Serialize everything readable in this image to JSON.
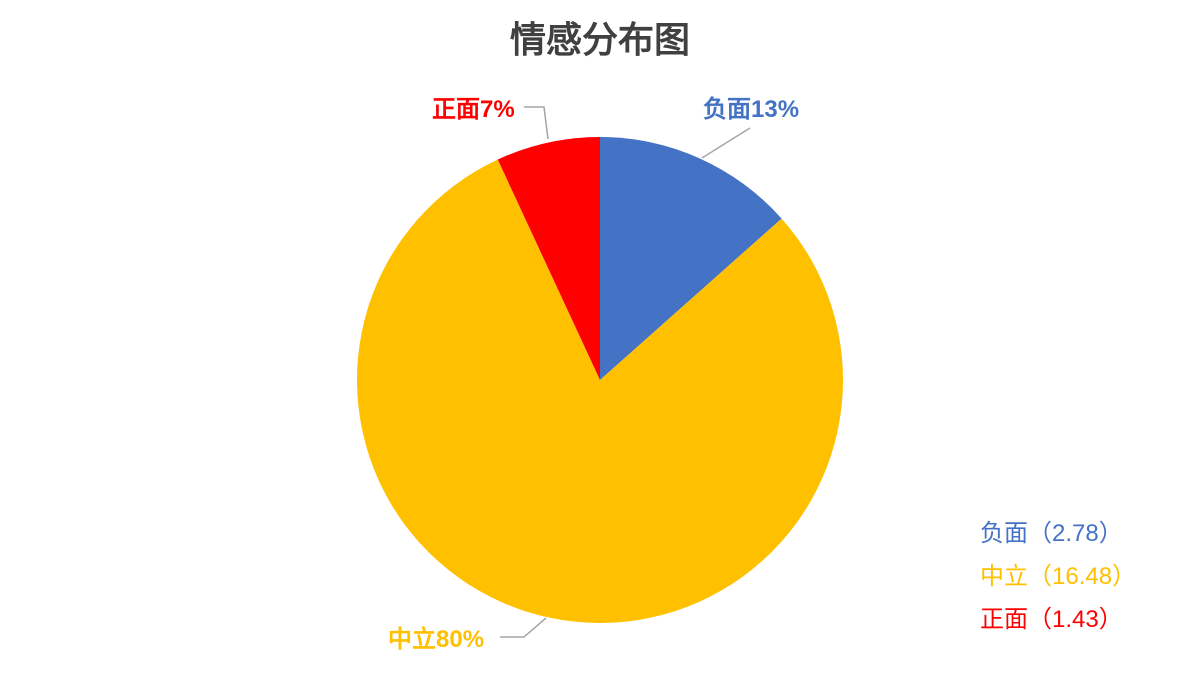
{
  "chart_data": {
    "type": "pie",
    "title": "情感分布图",
    "categories": [
      "负面",
      "中立",
      "正面"
    ],
    "values": [
      2.78,
      16.48,
      1.43
    ],
    "data_labels": [
      "负面13%",
      "中立80%",
      "正面7%"
    ],
    "legend": [
      "负面（2.78）",
      "中立（16.48）",
      "正面（1.43）"
    ],
    "colors": [
      "#4472C4",
      "#FFC000",
      "#FF0000"
    ],
    "legend_position": "bottom-right"
  }
}
